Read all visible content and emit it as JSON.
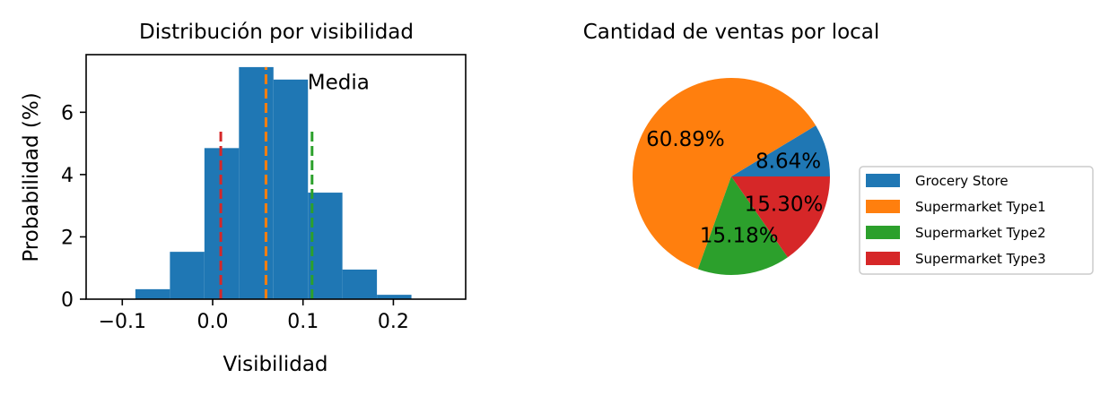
{
  "chart_data": [
    {
      "type": "histogram",
      "title": "Distribución por visibilidad",
      "xlabel": "Visibilidad",
      "ylabel": "Probabilidad (%)",
      "xlim": [
        -0.14,
        0.28
      ],
      "ylim": [
        0,
        7.85
      ],
      "xticks": [
        -0.1,
        0.0,
        0.1,
        0.2
      ],
      "xtick_labels": [
        "−0.1",
        "0.0",
        "0.1",
        "0.2"
      ],
      "yticks": [
        0,
        2,
        4,
        6
      ],
      "ytick_labels": [
        "0",
        "2",
        "4",
        "6"
      ],
      "bins": [
        {
          "x0": -0.0855,
          "x1": -0.0473,
          "y": 0.32
        },
        {
          "x0": -0.0473,
          "x1": -0.0091,
          "y": 1.52
        },
        {
          "x0": -0.0091,
          "x1": 0.0291,
          "y": 4.85
        },
        {
          "x0": 0.0291,
          "x1": 0.0673,
          "y": 7.45
        },
        {
          "x0": 0.0673,
          "x1": 0.1055,
          "y": 7.05
        },
        {
          "x0": 0.1055,
          "x1": 0.1436,
          "y": 3.42
        },
        {
          "x0": 0.1436,
          "x1": 0.1818,
          "y": 0.95
        },
        {
          "x0": 0.1818,
          "x1": 0.22,
          "y": 0.14
        }
      ],
      "bar_color": "#1f77b4",
      "vlines": [
        {
          "x": 0.009,
          "color": "#d62728",
          "ymax": 5.45
        },
        {
          "x": 0.059,
          "color": "#ff7f0e",
          "ymax": 7.45
        },
        {
          "x": 0.11,
          "color": "#2ca02c",
          "ymax": 5.45
        }
      ],
      "annotations": [
        {
          "text": "Media",
          "x": 0.105,
          "y": 7.0
        }
      ]
    },
    {
      "type": "pie",
      "title": "Cantidad de ventas por local",
      "labels": [
        "Grocery Store",
        "Supermarket Type1",
        "Supermarket Type2",
        "Supermarket Type3"
      ],
      "values": [
        8.64,
        60.89,
        15.18,
        15.3
      ],
      "value_labels": [
        "8.64%",
        "60.89%",
        "15.18%",
        "15.30%"
      ],
      "colors": [
        "#1f77b4",
        "#ff7f0e",
        "#2ca02c",
        "#d62728"
      ],
      "legend_position": "right"
    }
  ]
}
